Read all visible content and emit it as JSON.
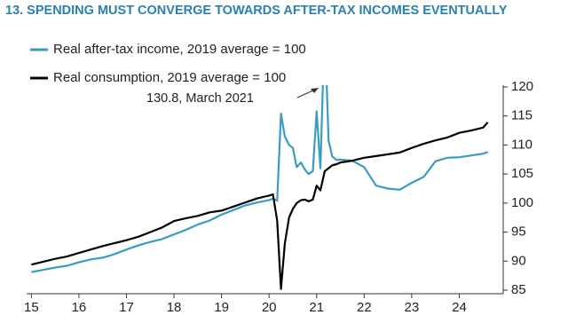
{
  "chart_data": {
    "type": "line",
    "title": "13. SPENDING MUST CONVERGE TOWARDS AFTER-TAX INCOMES EVENTUALLY",
    "annotation": "130.8, March 2021",
    "x": [
      2015.0,
      2015.25,
      2015.5,
      2015.75,
      2016.0,
      2016.25,
      2016.5,
      2016.75,
      2017.0,
      2017.25,
      2017.5,
      2017.75,
      2018.0,
      2018.25,
      2018.5,
      2018.75,
      2019.0,
      2019.25,
      2019.5,
      2019.75,
      2020.0,
      2020.08,
      2020.17,
      2020.25,
      2020.33,
      2020.42,
      2020.5,
      2020.58,
      2020.67,
      2020.75,
      2020.83,
      2020.92,
      2021.0,
      2021.08,
      2021.17,
      2021.25,
      2021.33,
      2021.42,
      2021.5,
      2021.75,
      2022.0,
      2022.25,
      2022.5,
      2022.75,
      2023.0,
      2023.25,
      2023.5,
      2023.75,
      2024.0,
      2024.25,
      2024.5,
      2024.6
    ],
    "series": [
      {
        "name": "Real after-tax income, 2019 average = 100",
        "color": "#3a9cc4",
        "values": [
          88.1,
          88.5,
          88.9,
          89.2,
          89.8,
          90.3,
          90.6,
          91.2,
          92.0,
          92.7,
          93.3,
          93.8,
          94.6,
          95.4,
          96.3,
          97.0,
          98.0,
          98.8,
          99.6,
          100.1,
          100.5,
          100.8,
          100.4,
          115.4,
          111.5,
          110.0,
          109.5,
          106.2,
          107.0,
          105.8,
          105.0,
          105.5,
          115.8,
          106.0,
          130.8,
          110.8,
          108.0,
          107.4,
          107.5,
          107.3,
          106.2,
          103.0,
          102.5,
          102.3,
          103.5,
          104.5,
          107.2,
          107.8,
          107.9,
          108.2,
          108.5,
          108.8
        ]
      },
      {
        "name": "Real consumption, 2019 average = 100",
        "color": "#000000",
        "values": [
          89.4,
          89.9,
          90.4,
          90.8,
          91.4,
          92.0,
          92.6,
          93.1,
          93.6,
          94.2,
          95.0,
          95.8,
          96.9,
          97.4,
          97.8,
          98.4,
          98.7,
          99.4,
          100.1,
          100.8,
          101.3,
          101.5,
          97.0,
          85.2,
          93.0,
          97.5,
          99.0,
          100.0,
          100.5,
          100.6,
          100.3,
          100.6,
          103.0,
          102.2,
          105.5,
          106.0,
          106.5,
          106.7,
          107.0,
          107.3,
          107.8,
          108.1,
          108.4,
          108.7,
          109.5,
          110.2,
          110.8,
          111.3,
          112.1,
          112.5,
          113.0,
          113.9
        ]
      }
    ],
    "xlim": [
      2014.9,
      2024.85
    ],
    "xticks": [
      {
        "value": 2015,
        "label": "15"
      },
      {
        "value": 2016,
        "label": "16"
      },
      {
        "value": 2017,
        "label": "17"
      },
      {
        "value": 2018,
        "label": "18"
      },
      {
        "value": 2019,
        "label": "19"
      },
      {
        "value": 2020,
        "label": "20"
      },
      {
        "value": 2021,
        "label": "21"
      },
      {
        "value": 2022,
        "label": "22"
      },
      {
        "value": 2023,
        "label": "23"
      },
      {
        "value": 2024,
        "label": "24"
      }
    ],
    "ylim": [
      85,
      120
    ],
    "yticks": [
      85,
      90,
      95,
      100,
      105,
      110,
      115,
      120
    ],
    "title_color": "#2b80b0"
  }
}
